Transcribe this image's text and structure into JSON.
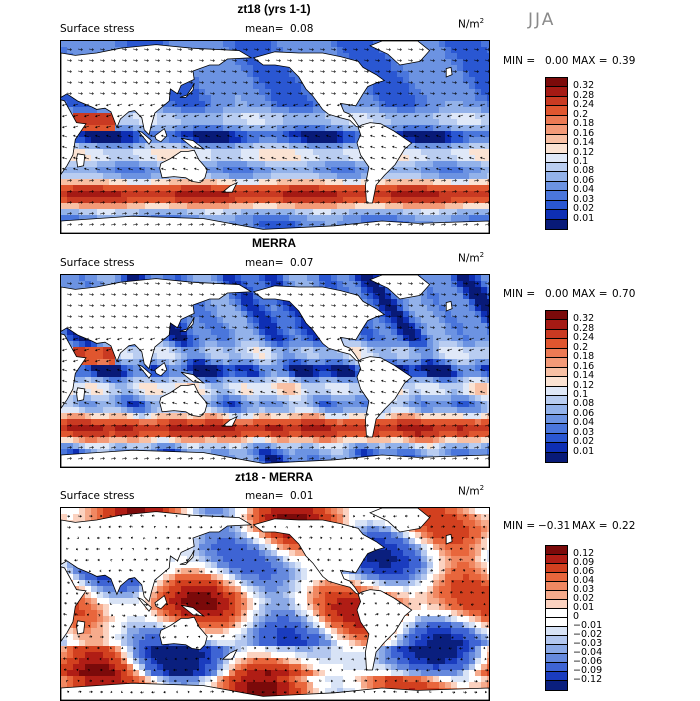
{
  "season": "JJA",
  "unit_base": "N/m",
  "unit_exp": "2",
  "panels": [
    {
      "title": "zt18 (yrs 1-1)",
      "field": "Surface stress",
      "mean_label": "mean=",
      "mean_value": "0.08",
      "min_label": "MIN =",
      "min_value": "0.00",
      "max_label": "MAX =",
      "max_value": "0.39",
      "scale": "absolute",
      "colorbar_labels": [
        "0.32",
        "0.28",
        "0.24",
        "0.2",
        "0.18",
        "0.16",
        "0.14",
        "0.12",
        "0.1",
        "0.08",
        "0.06",
        "0.04",
        "0.03",
        "0.02",
        "0.01"
      ]
    },
    {
      "title": "MERRA",
      "field": "Surface stress",
      "mean_label": "mean=",
      "mean_value": "0.07",
      "min_label": "MIN =",
      "min_value": "0.00",
      "max_label": "MAX =",
      "max_value": "0.70",
      "scale": "absolute",
      "colorbar_labels": [
        "0.32",
        "0.28",
        "0.24",
        "0.2",
        "0.18",
        "0.16",
        "0.14",
        "0.12",
        "0.1",
        "0.08",
        "0.06",
        "0.04",
        "0.03",
        "0.02",
        "0.01"
      ]
    },
    {
      "title": "zt18 - MERRA",
      "field": "Surface stress",
      "mean_label": "mean=",
      "mean_value": "0.01",
      "min_label": "MIN =",
      "min_value": "−0.31",
      "max_label": "MAX =",
      "max_value": "0.22",
      "scale": "difference",
      "colorbar_labels": [
        "0.12",
        "0.09",
        "0.06",
        "0.04",
        "0.03",
        "0.02",
        "0.01",
        "0",
        "−0.01",
        "−0.02",
        "−0.03",
        "−0.04",
        "−0.06",
        "−0.09",
        "−0.12"
      ]
    }
  ],
  "colors": {
    "absolute": [
      "#7b0a0a",
      "#a51a14",
      "#c93a22",
      "#e0562f",
      "#ec7a54",
      "#f39a78",
      "#f8c0a4",
      "#fbe3d3",
      "#dfe8f8",
      "#b9cdf1",
      "#93b2ea",
      "#6c93e2",
      "#4a76dc",
      "#2a57d2",
      "#0e2fb4",
      "#081a78"
    ],
    "difference": [
      "#7b0a0a",
      "#b01d15",
      "#d2401f",
      "#e8663c",
      "#f08862",
      "#f6ab8c",
      "#fbd2c0",
      "#ffffff",
      "#ffffff",
      "#d8e3f6",
      "#b3c7ef",
      "#8ba9e6",
      "#6589dd",
      "#3e64d4",
      "#1a3cbf",
      "#0a1f7e"
    ],
    "land": "#ffffff",
    "vector": "#000000"
  },
  "chart_data": [
    {
      "type": "heatmap",
      "title": "zt18 (yrs 1-1)",
      "variable": "Surface stress",
      "units": "N/m2",
      "season": "JJA",
      "mean": 0.08,
      "min": 0.0,
      "max": 0.39,
      "contour_levels": [
        0.01,
        0.02,
        0.03,
        0.04,
        0.06,
        0.08,
        0.1,
        0.12,
        0.14,
        0.16,
        0.18,
        0.2,
        0.24,
        0.28,
        0.32
      ],
      "overlay": "wind stress vectors"
    },
    {
      "type": "heatmap",
      "title": "MERRA",
      "variable": "Surface stress",
      "units": "N/m2",
      "season": "JJA",
      "mean": 0.07,
      "min": 0.0,
      "max": 0.7,
      "contour_levels": [
        0.01,
        0.02,
        0.03,
        0.04,
        0.06,
        0.08,
        0.1,
        0.12,
        0.14,
        0.16,
        0.18,
        0.2,
        0.24,
        0.28,
        0.32
      ],
      "overlay": "wind stress vectors"
    },
    {
      "type": "heatmap",
      "title": "zt18 - MERRA",
      "variable": "Surface stress",
      "units": "N/m2",
      "season": "JJA",
      "mean": 0.01,
      "min": -0.31,
      "max": 0.22,
      "contour_levels": [
        -0.12,
        -0.09,
        -0.06,
        -0.04,
        -0.03,
        -0.02,
        -0.01,
        0,
        0.01,
        0.02,
        0.03,
        0.04,
        0.06,
        0.09,
        0.12
      ],
      "overlay": "wind stress difference vectors"
    }
  ]
}
